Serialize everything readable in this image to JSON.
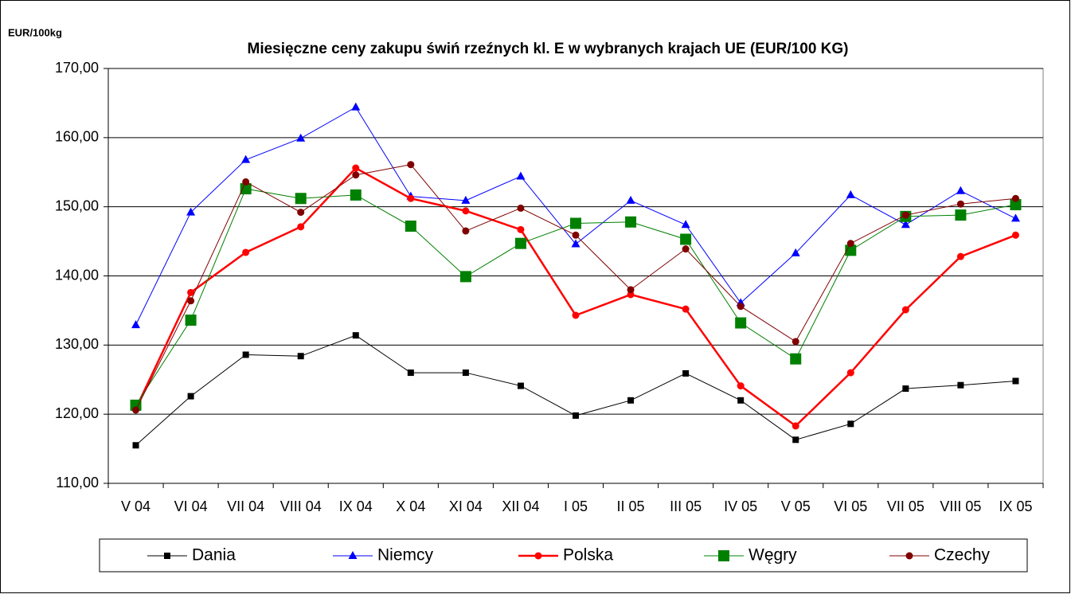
{
  "chart_data": {
    "type": "line",
    "title": "Miesięczne ceny zakupu świń rzeźnych kl. E w wybranych krajach UE (EUR/100 KG)",
    "y_label": "EUR/100kg",
    "categories": [
      "V  04",
      "VI  04",
      "VII  04",
      "VIII  04",
      "IX  04",
      "X  04",
      "XI  04",
      "XII  04",
      "I  05",
      "II  05",
      "III  05",
      "IV  05",
      "V 05",
      "VI 05",
      "VII 05",
      "VIII 05",
      "IX 05"
    ],
    "series": [
      {
        "name": "Dania",
        "color": "#000000",
        "marker": "square",
        "line_width": 1,
        "values": [
          115.5,
          122.6,
          128.6,
          128.4,
          131.4,
          126.0,
          126.0,
          124.1,
          119.8,
          122.0,
          125.9,
          122.0,
          116.3,
          118.6,
          123.7,
          124.2,
          124.8
        ]
      },
      {
        "name": "Niemcy",
        "color": "#0000ff",
        "marker": "triangle",
        "line_width": 1,
        "values": [
          132.9,
          149.2,
          156.8,
          159.9,
          164.4,
          151.5,
          150.9,
          154.4,
          144.6,
          150.9,
          147.4,
          136.1,
          143.3,
          151.7,
          147.4,
          152.3,
          148.3
        ]
      },
      {
        "name": "Polska",
        "color": "#ff0000",
        "marker": "circle",
        "line_width": 2.5,
        "values": [
          120.8,
          137.6,
          143.4,
          147.1,
          155.6,
          151.2,
          149.4,
          146.7,
          134.3,
          137.3,
          135.2,
          124.1,
          118.3,
          126.0,
          135.1,
          142.8,
          145.9
        ]
      },
      {
        "name": "Węgry",
        "color": "#008000",
        "marker": "big-square",
        "line_width": 1,
        "values": [
          121.3,
          133.6,
          152.6,
          151.2,
          151.7,
          147.2,
          139.9,
          144.7,
          147.6,
          147.8,
          145.3,
          133.2,
          128.0,
          143.7,
          148.6,
          148.8,
          150.3
        ]
      },
      {
        "name": "Czechy",
        "color": "#800000",
        "marker": "circle",
        "line_width": 1,
        "values": [
          120.6,
          136.4,
          153.6,
          149.2,
          154.6,
          156.1,
          146.5,
          149.8,
          145.9,
          138.0,
          143.9,
          135.6,
          130.5,
          144.7,
          148.8,
          150.4,
          151.2
        ]
      }
    ],
    "ylim": [
      110,
      170
    ],
    "yticks": [
      {
        "value": 110,
        "label": "110,00"
      },
      {
        "value": 120,
        "label": "120,00"
      },
      {
        "value": 130,
        "label": "130,00"
      },
      {
        "value": 140,
        "label": "140,00"
      },
      {
        "value": 150,
        "label": "150,00"
      },
      {
        "value": 160,
        "label": "160,00"
      },
      {
        "value": 170,
        "label": "170,00"
      }
    ],
    "grid": true,
    "legend": "bottom"
  }
}
